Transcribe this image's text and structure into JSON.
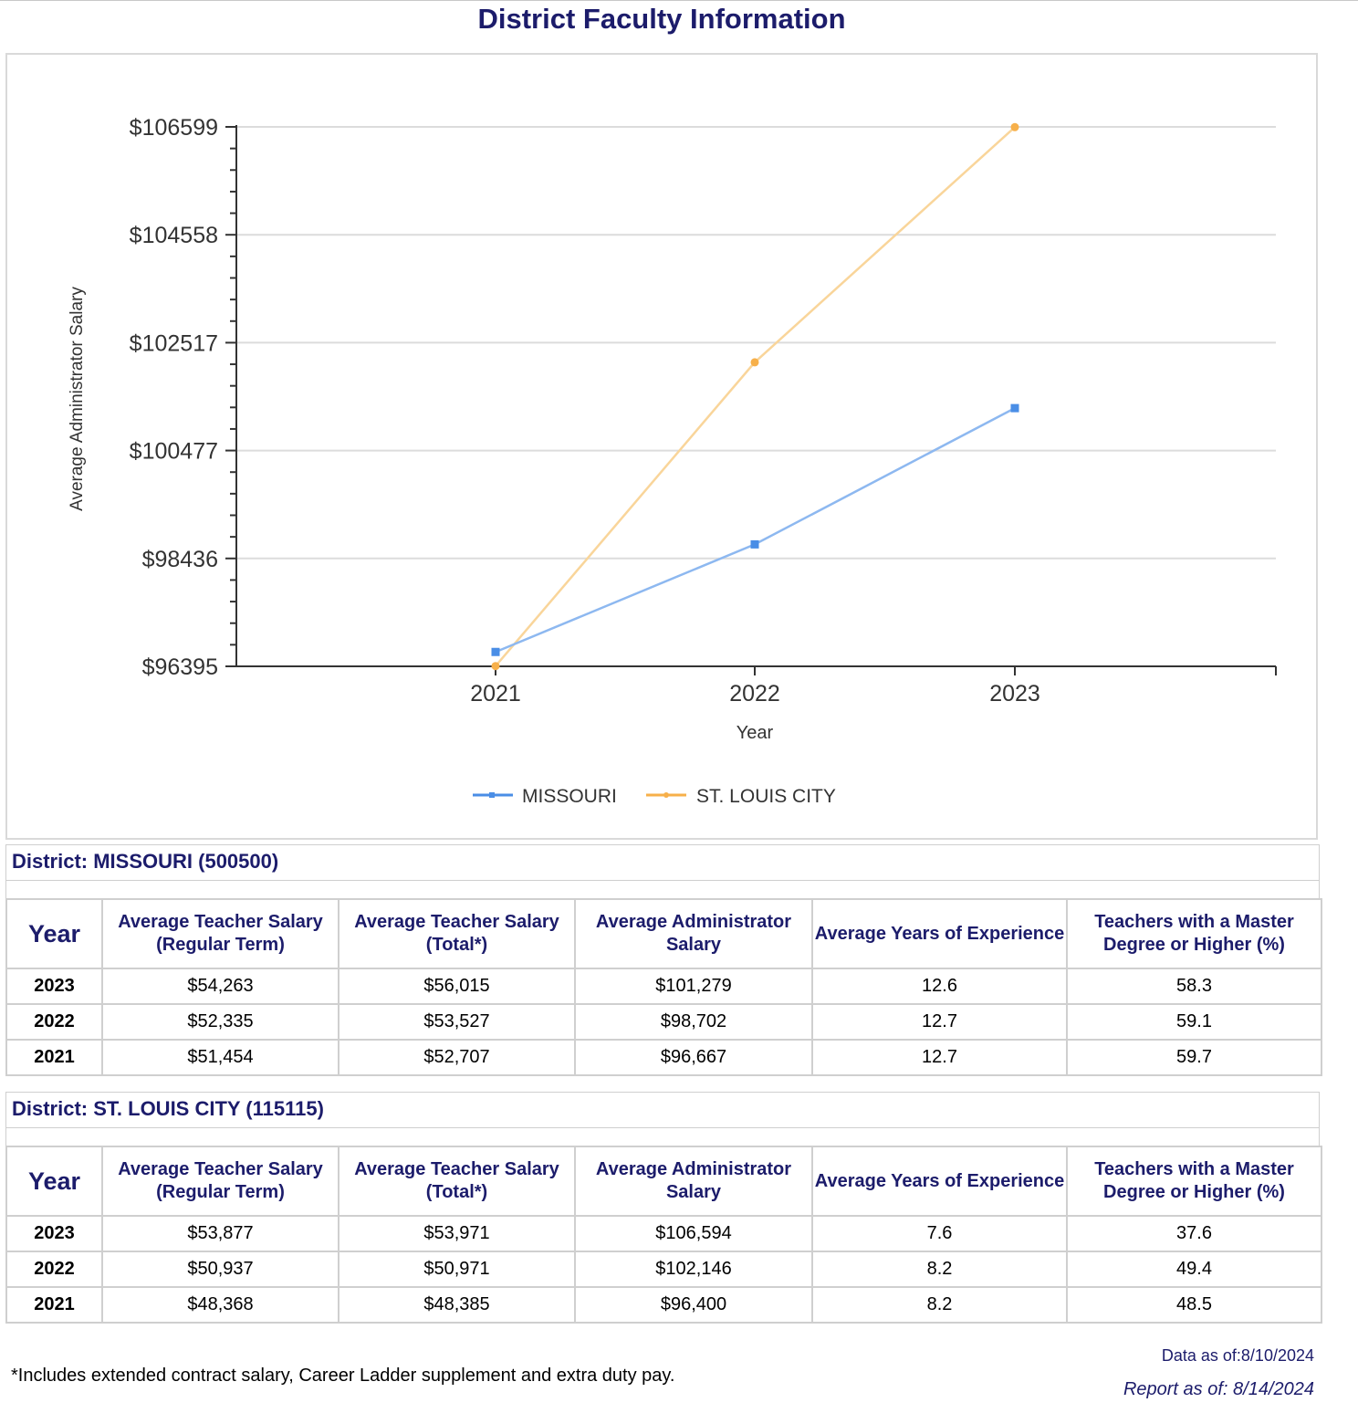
{
  "title": "District Faculty Information",
  "chart_data": {
    "type": "line",
    "title": "",
    "xlabel": "Year",
    "ylabel": "Average Administrator Salary",
    "categories": [
      "2021",
      "2022",
      "2023"
    ],
    "ylim": [
      96395,
      106599
    ],
    "yticks": [
      96395,
      98436,
      100477,
      102517,
      104558,
      106599
    ],
    "ytick_labels": [
      "$96395",
      "$98436",
      "$100477",
      "$102517",
      "$104558",
      "$106599"
    ],
    "legend_position": "bottom",
    "series": [
      {
        "name": "MISSOURI",
        "color": "#4a8ee6",
        "marker": "square",
        "values": [
          96667,
          98702,
          101279
        ]
      },
      {
        "name": "ST. LOUIS CITY",
        "color": "#f7b04a",
        "marker": "circle",
        "values": [
          96400,
          102146,
          106594
        ]
      }
    ]
  },
  "tables": [
    {
      "heading": "District: MISSOURI (500500)",
      "columns": [
        "Year",
        "Average Teacher Salary (Regular Term)",
        "Average Teacher Salary (Total*)",
        "Average Administrator Salary",
        "Average Years of Experience",
        "Teachers with a Master Degree or Higher (%)"
      ],
      "rows": [
        [
          "2023",
          "$54,263",
          "$56,015",
          "$101,279",
          "12.6",
          "58.3"
        ],
        [
          "2022",
          "$52,335",
          "$53,527",
          "$98,702",
          "12.7",
          "59.1"
        ],
        [
          "2021",
          "$51,454",
          "$52,707",
          "$96,667",
          "12.7",
          "59.7"
        ]
      ]
    },
    {
      "heading": "District: ST. LOUIS CITY (115115)",
      "columns": [
        "Year",
        "Average Teacher Salary (Regular Term)",
        "Average Teacher Salary (Total*)",
        "Average Administrator Salary",
        "Average Years of Experience",
        "Teachers with a Master Degree or Higher (%)"
      ],
      "rows": [
        [
          "2023",
          "$53,877",
          "$53,971",
          "$106,594",
          "7.6",
          "37.6"
        ],
        [
          "2022",
          "$50,937",
          "$50,971",
          "$102,146",
          "8.2",
          "49.4"
        ],
        [
          "2021",
          "$48,368",
          "$48,385",
          "$96,400",
          "8.2",
          "48.5"
        ]
      ]
    }
  ],
  "footnote": "*Includes extended contract salary, Career Ladder supplement and extra duty pay.",
  "data_as_of": "Data as of:8/10/2024",
  "report_as_of": "Report as of: 8/14/2024"
}
